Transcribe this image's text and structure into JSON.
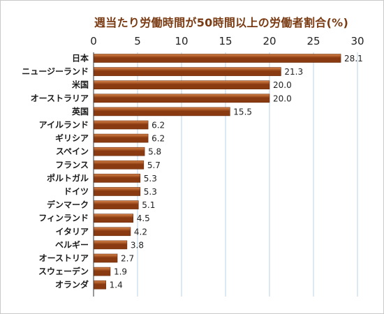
{
  "chart_data": {
    "type": "bar",
    "orientation": "horizontal",
    "title": "週当たり労働時間が50時間以上の労働者割合(%)",
    "categories": [
      "日本",
      "ニュージーランド",
      "米国",
      "オーストラリア",
      "英国",
      "アイルランド",
      "ギリシア",
      "スペイン",
      "フランス",
      "ポルトガル",
      "ドイツ",
      "デンマーク",
      "フィンランド",
      "イタリア",
      "ベルギー",
      "オーストリア",
      "スウェーデン",
      "オランダ"
    ],
    "values": [
      28.1,
      21.3,
      20.0,
      20.0,
      15.5,
      6.2,
      6.2,
      5.8,
      5.7,
      5.3,
      5.3,
      5.1,
      4.5,
      4.2,
      3.8,
      2.7,
      1.9,
      1.4
    ],
    "value_labels": [
      "28.1",
      "21.3",
      "20.0",
      "20.0",
      "15.5",
      "6.2",
      "6.2",
      "5.8",
      "5.7",
      "5.3",
      "5.3",
      "5.1",
      "4.5",
      "4.2",
      "3.8",
      "2.7",
      "1.9",
      "1.4"
    ],
    "xlim": [
      0,
      30
    ],
    "xticks": [
      0,
      5,
      10,
      15,
      20,
      25,
      30
    ],
    "xtick_position": "top",
    "grid": true,
    "colors": {
      "bar_dark": "#8a3a10",
      "bar_light": "#d9854a",
      "grid": "#b9d2e6",
      "axis": "#333333",
      "title": "#7a3a12"
    }
  }
}
